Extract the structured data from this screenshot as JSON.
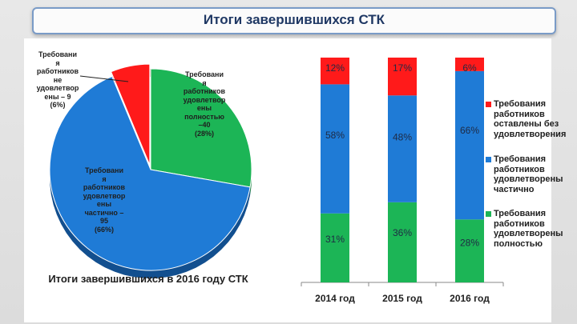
{
  "slide": {
    "title": "Итоги завершившихся СТК"
  },
  "colors": {
    "red": "#ff1a1a",
    "blue": "#1f7bd6",
    "green": "#1cb556",
    "title_text": "#1f3864"
  },
  "chart_data": [
    {
      "type": "pie",
      "title": "Итоги завершившихся в 2016 году СТК",
      "slices": [
        {
          "label": "Требовани\nя\nработников\nне\nудовлетвор\nены – 9\n(6%)",
          "value": 9,
          "percent": 6,
          "color": "#ff1a1a"
        },
        {
          "label": "Требовани\nя\nработников\nудовлетвор\nены\nполностью\n–40\n(28%)",
          "value": 40,
          "percent": 28,
          "color": "#1cb556"
        },
        {
          "label": "Требовани\nя\nработников\nудовлетвор\nены\nчастично –\n95\n(66%)",
          "value": 95,
          "percent": 66,
          "color": "#1f7bd6"
        }
      ]
    },
    {
      "type": "bar",
      "stacked": true,
      "percent": true,
      "categories": [
        "2014 год",
        "2015 год",
        "2016 год"
      ],
      "series": [
        {
          "name": "Требования работников удовлетворены полностью",
          "color": "#1cb556",
          "values": [
            31,
            36,
            28
          ],
          "labels": [
            "31%",
            "36%",
            "28%"
          ]
        },
        {
          "name": "Требования работников удовлетворены частично",
          "color": "#1f7bd6",
          "values": [
            58,
            48,
            66
          ],
          "labels": [
            "58%",
            "48%",
            "66%"
          ]
        },
        {
          "name": "Требования работников оставлены без удовлетворения",
          "color": "#ff1a1a",
          "values": [
            12,
            17,
            6
          ],
          "labels": [
            "12%",
            "17%",
            "6%"
          ]
        }
      ],
      "legend": [
        {
          "label": "Требования\nработников\nоставлены без\nудовлетворения",
          "color": "#ff1a1a"
        },
        {
          "label": "Требования\nработников\nудовлетворены\nчастично",
          "color": "#1f7bd6"
        },
        {
          "label": "Требования\nработников\nудовлетворены\nполностью",
          "color": "#1cb556"
        }
      ],
      "legend_position": "right"
    }
  ]
}
